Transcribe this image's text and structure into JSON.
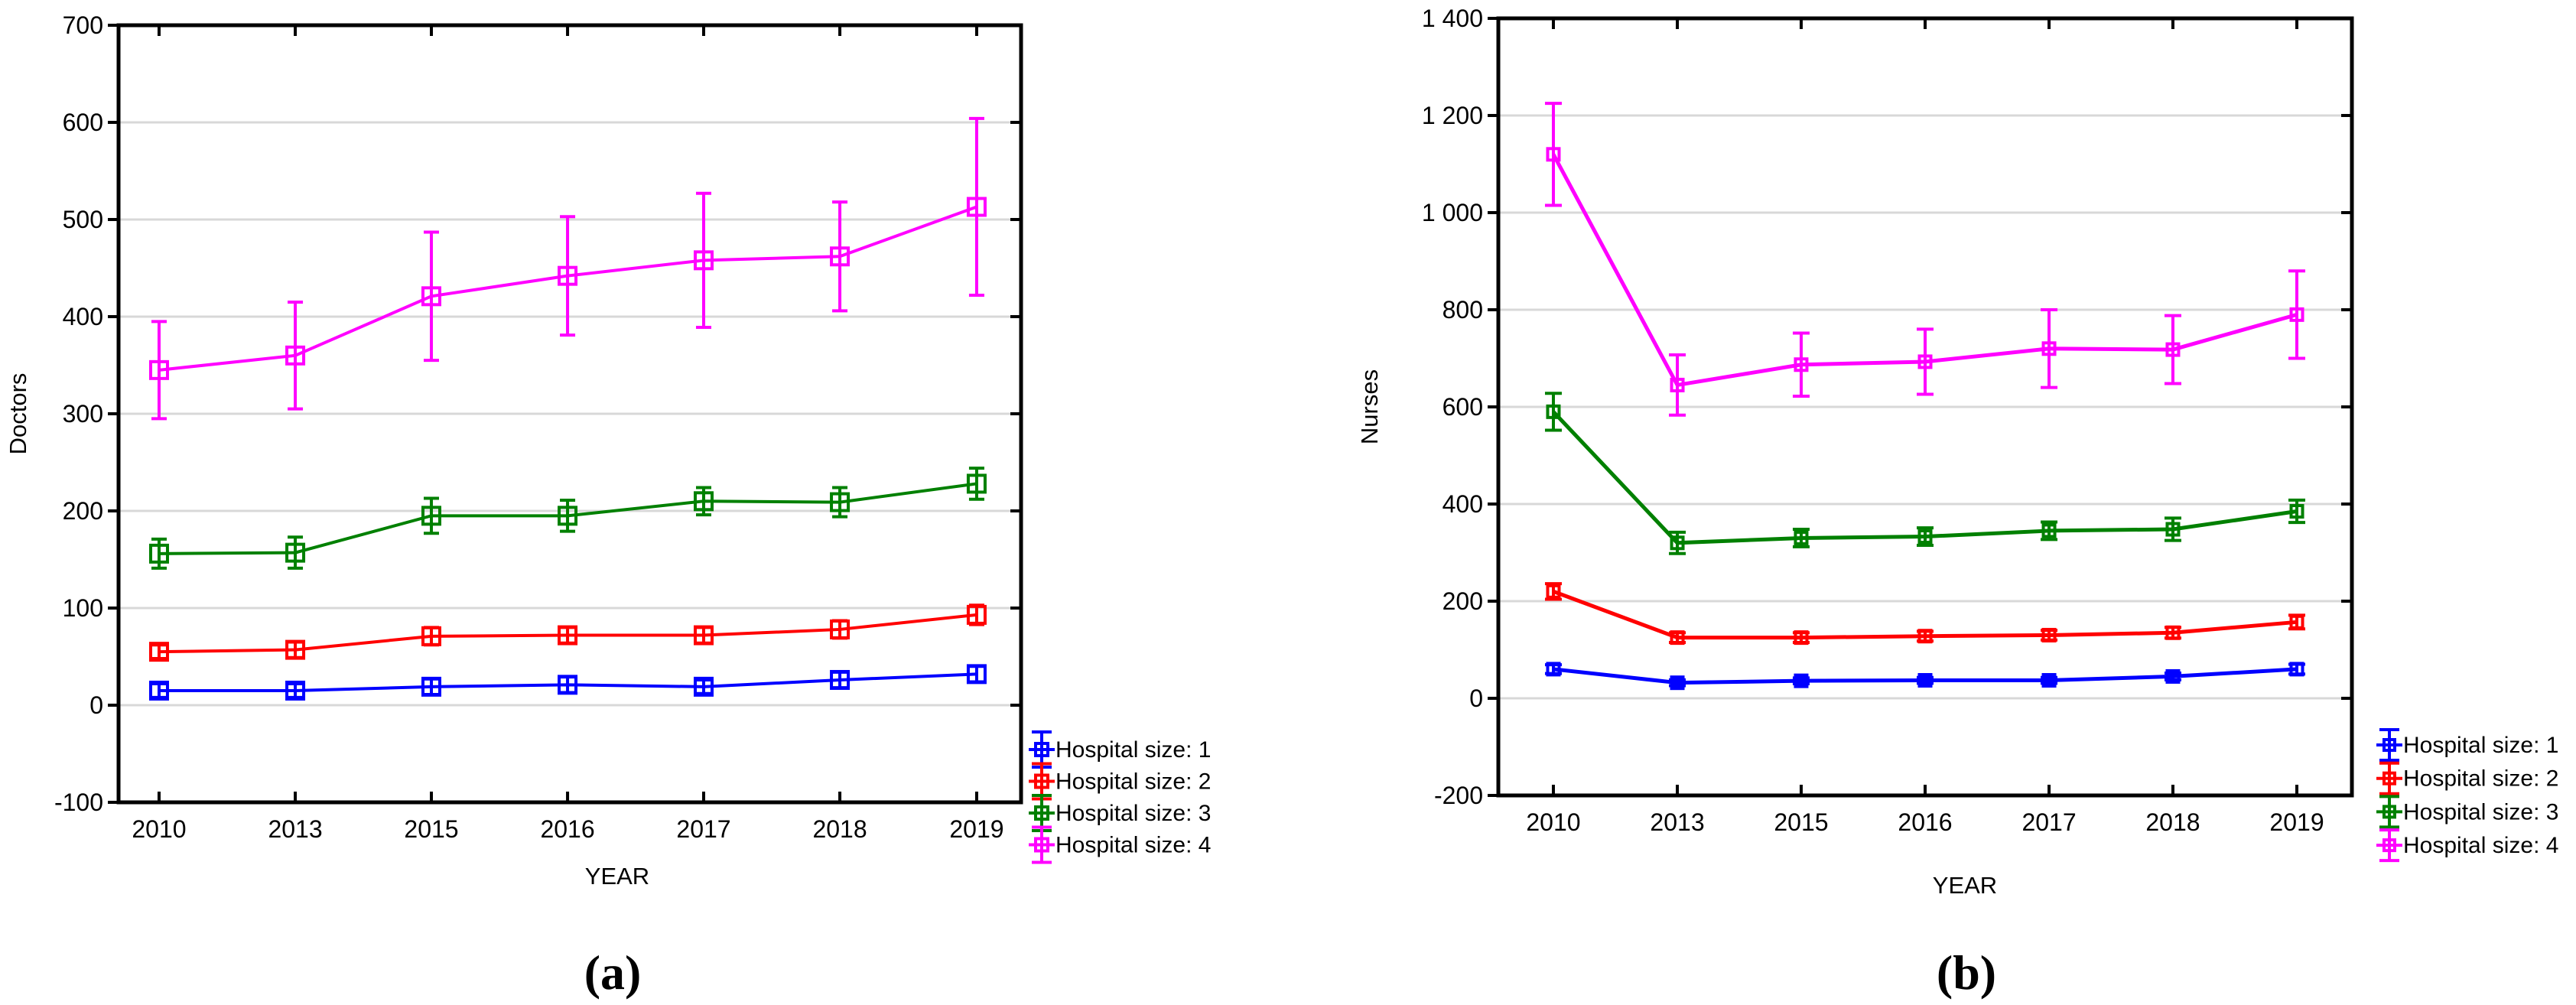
{
  "figure": {
    "type": "two-panel line charts with error bars",
    "x_axis_title": "YEAR",
    "panel_a_caption": "(a)",
    "panel_b_caption": "(b)"
  },
  "chart_data": [
    {
      "type": "line",
      "panel_label": "(a)",
      "title": "",
      "xlabel": "YEAR",
      "ylabel": "Doctors",
      "ylim": [
        -100,
        700
      ],
      "ytick_step": 100,
      "ytick_labels": [
        "700",
        "600",
        "500",
        "400",
        "300",
        "200",
        "100",
        "0",
        "-100"
      ],
      "categories": [
        "2010",
        "2013",
        "2015",
        "2016",
        "2017",
        "2018",
        "2019"
      ],
      "grid": "horizontal",
      "legend_position": "right-bottom",
      "error_bars": true,
      "marker": "open-square",
      "series": [
        {
          "name": "Hospital size: 1",
          "color": "#0000ff",
          "values": [
            15,
            15,
            19,
            21,
            19,
            26,
            32
          ],
          "errors": [
            7,
            7,
            8,
            8,
            7,
            8,
            8
          ]
        },
        {
          "name": "Hospital size: 2",
          "color": "#ff0000",
          "values": [
            55,
            57,
            71,
            72,
            72,
            78,
            93
          ],
          "errors": [
            7,
            8,
            9,
            8,
            8,
            9,
            10
          ]
        },
        {
          "name": "Hospital size: 3",
          "color": "#008000",
          "values": [
            156,
            157,
            195,
            195,
            210,
            209,
            228
          ],
          "errors": [
            15,
            16,
            18,
            16,
            14,
            15,
            16
          ]
        },
        {
          "name": "Hospital size: 4",
          "color": "#ff00ff",
          "values": [
            345,
            360,
            421,
            442,
            458,
            462,
            513
          ],
          "errors": [
            50,
            55,
            66,
            61,
            69,
            56,
            91
          ]
        }
      ]
    },
    {
      "type": "line",
      "panel_label": "(b)",
      "title": "",
      "xlabel": "YEAR",
      "ylabel": "Nurses",
      "ylim": [
        -200,
        1400
      ],
      "ytick_step": 200,
      "ytick_labels": [
        "1 400",
        "1 200",
        "1 000",
        "800",
        "600",
        "400",
        "200",
        "0",
        "-200"
      ],
      "categories": [
        "2010",
        "2013",
        "2015",
        "2016",
        "2017",
        "2018",
        "2019"
      ],
      "grid": "horizontal",
      "legend_position": "right-bottom",
      "error_bars": true,
      "marker": "open-square",
      "series": [
        {
          "name": "Hospital size: 1",
          "color": "#0000ff",
          "values": [
            60,
            32,
            36,
            37,
            37,
            45,
            60
          ],
          "errors": [
            9,
            6,
            6,
            6,
            6,
            7,
            10
          ]
        },
        {
          "name": "Hospital size: 2",
          "color": "#ff0000",
          "values": [
            220,
            125,
            125,
            128,
            130,
            135,
            157
          ],
          "errors": [
            16,
            10,
            10,
            10,
            10,
            11,
            14
          ]
        },
        {
          "name": "Hospital size: 3",
          "color": "#008000",
          "values": [
            590,
            320,
            330,
            333,
            345,
            348,
            385
          ],
          "errors": [
            38,
            22,
            18,
            18,
            18,
            23,
            23
          ]
        },
        {
          "name": "Hospital size: 4",
          "color": "#ff00ff",
          "values": [
            1120,
            645,
            687,
            693,
            720,
            718,
            790
          ],
          "errors": [
            105,
            62,
            65,
            67,
            80,
            70,
            90
          ]
        }
      ]
    }
  ],
  "style": {
    "grid_color": "#d8d8d8",
    "axis_color": "#000000",
    "background": "#ffffff"
  }
}
